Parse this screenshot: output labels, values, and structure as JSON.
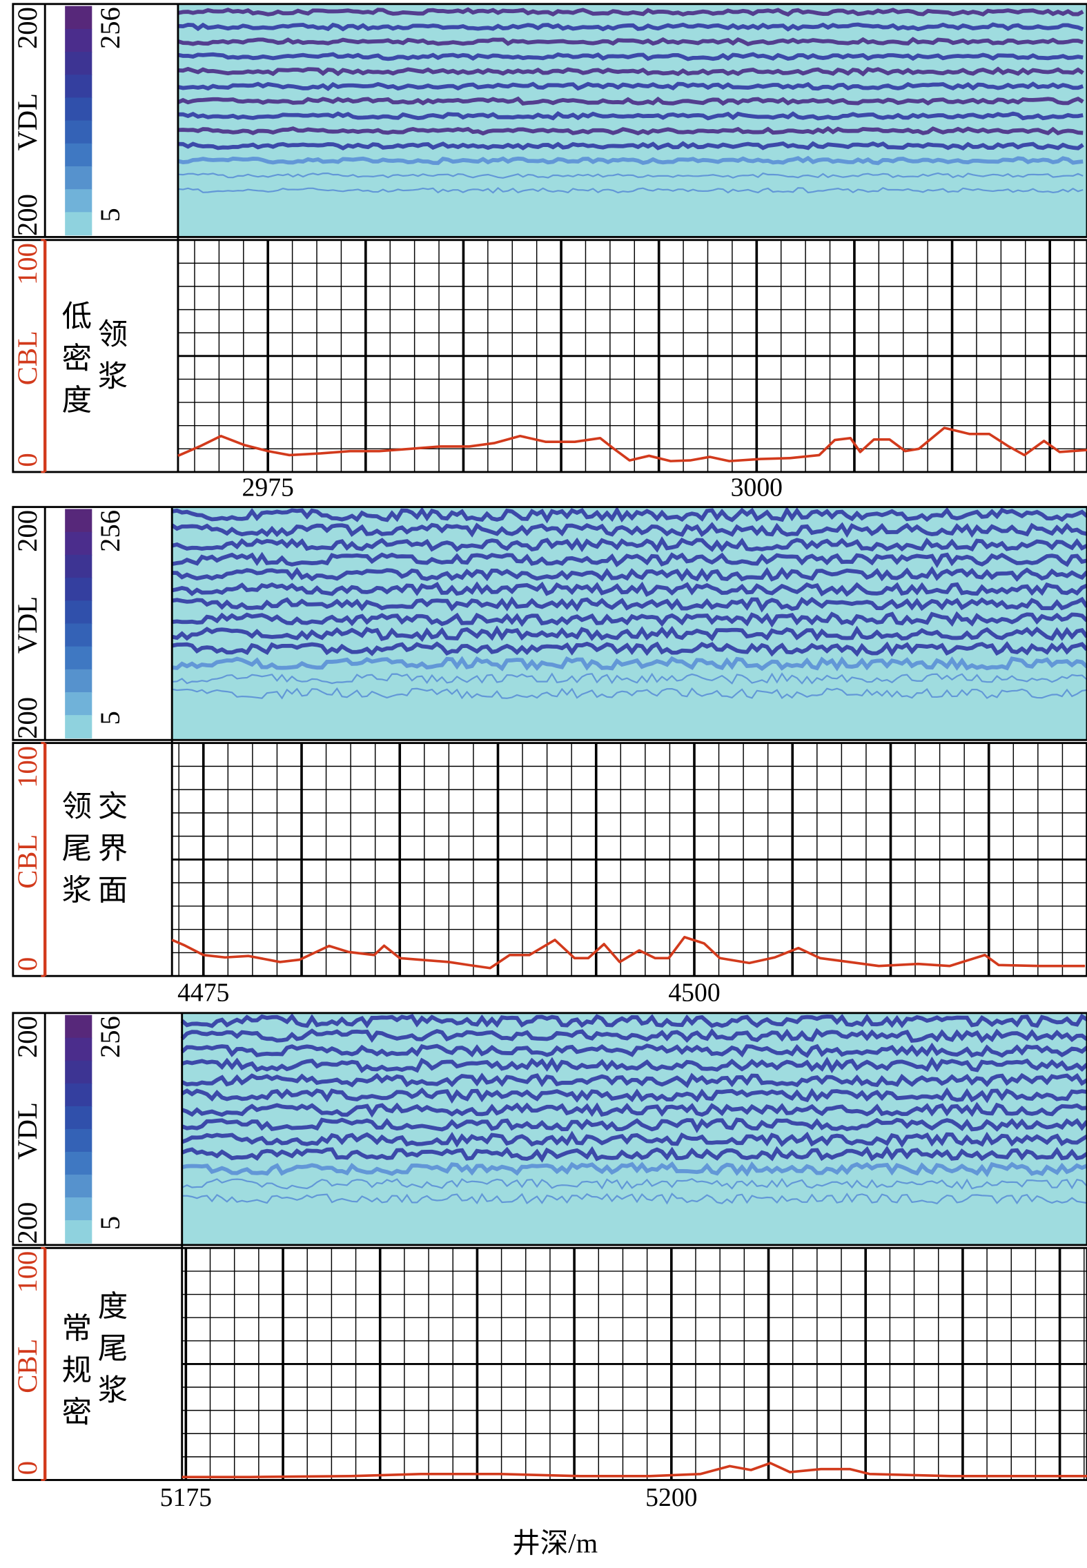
{
  "chart_data": [
    {
      "type": "line",
      "vdl": {
        "label": "VDL",
        "time_labels": [
          200,
          200
        ],
        "colorbar_ticks": [
          256,
          5
        ],
        "colors": [
          "#57287a",
          "#4b2d8c",
          "#3d3493",
          "#343f9f",
          "#3050ab",
          "#3462b6",
          "#3f78c2",
          "#5692cd",
          "#70b2d9",
          "#8fd2de"
        ]
      },
      "ylabel": "CBL",
      "ylim": [
        0,
        100
      ],
      "yticks": [
        0,
        100
      ],
      "annotation": [
        "低密度",
        "领浆"
      ],
      "xlim": [
        2970.4,
        3016.9
      ],
      "xticks": [
        2975,
        3000
      ],
      "grid": {
        "x_major": 5,
        "x_minor": 1.25,
        "y_major": 50,
        "y_minor": 10
      },
      "series": [
        {
          "color": "#d23a1c",
          "x": [
            2970.4,
            2971.5,
            2972.6,
            2973.8,
            2975,
            2976.1,
            2977.7,
            2979.2,
            2980.7,
            2982.3,
            2983.8,
            2985.3,
            2986.6,
            2987.9,
            2989.2,
            2990.7,
            2992.0,
            2992.7,
            2993.5,
            2994.5,
            2995.6,
            2996.6,
            2997.6,
            2998.6,
            3000.2,
            3001.7,
            3003.2,
            3004.0,
            3004.8,
            3005.3,
            3006.0,
            3006.8,
            3007.6,
            3008.3,
            3009.6,
            3010.9,
            3011.9,
            3012.9,
            3013.7,
            3014.7,
            3015.5,
            3016.9
          ],
          "values": [
            7,
            11,
            15.5,
            11.6,
            9,
            7.3,
            8,
            9,
            9,
            10,
            11,
            11,
            12.5,
            15.5,
            13,
            13,
            14.6,
            10,
            5,
            7,
            4.7,
            5,
            6.5,
            4.7,
            5.6,
            6,
            7.3,
            13.8,
            14.6,
            8.6,
            14,
            14,
            9,
            10,
            19,
            16.4,
            16.4,
            11,
            7.3,
            13.4,
            8.6,
            9.5
          ]
        }
      ]
    },
    {
      "type": "line",
      "vdl": {
        "label": "VDL",
        "time_labels": [
          200,
          200
        ],
        "colorbar_ticks": [
          256,
          5
        ],
        "colors": [
          "#57287a",
          "#4b2d8c",
          "#3d3493",
          "#343f9f",
          "#3050ab",
          "#3462b6",
          "#3f78c2",
          "#5692cd",
          "#70b2d9",
          "#8fd2de"
        ]
      },
      "ylabel": "CBL",
      "ylim": [
        0,
        100
      ],
      "yticks": [
        0,
        100
      ],
      "annotation": [
        "领尾浆",
        "交界面"
      ],
      "xlim": [
        4473.4,
        4520.0
      ],
      "xticks": [
        4475,
        4500
      ],
      "grid": {
        "x_major": 5,
        "x_minor": 1.25,
        "y_major": 50,
        "y_minor": 10
      },
      "series": [
        {
          "color": "#d23a1c",
          "x": [
            4473.4,
            4474.0,
            4475,
            4476.1,
            4477.3,
            4478.9,
            4479.9,
            4481.4,
            4482.4,
            4483.7,
            4484.2,
            4485.0,
            4486.0,
            4487.5,
            4488.5,
            4489.6,
            4490.6,
            4491.6,
            4492.9,
            4493.9,
            4494.6,
            4495.4,
            4496.2,
            4497.2,
            4498.0,
            4498.7,
            4499.5,
            4500.5,
            4501.3,
            4502.8,
            4504.1,
            4505.3,
            4506.4,
            4507.9,
            4509.4,
            4511.4,
            4513.0,
            4514.8,
            4515.5,
            4517.6,
            4519.9
          ],
          "values": [
            15.5,
            13.3,
            9,
            8,
            8.6,
            6,
            7,
            12.9,
            10.3,
            9,
            13,
            7.7,
            7,
            6,
            4.7,
            3.4,
            9,
            9,
            15.5,
            7.7,
            7.7,
            13.7,
            6,
            11,
            7.7,
            7.7,
            16.7,
            14,
            7.7,
            5.6,
            8,
            12,
            7.7,
            6,
            4.3,
            5.2,
            4.3,
            9,
            4.7,
            4.3,
            4.3
          ]
        }
      ]
    },
    {
      "type": "line",
      "vdl": {
        "label": "VDL",
        "time_labels": [
          200,
          200
        ],
        "colorbar_ticks": [
          256,
          5
        ],
        "colors": [
          "#57287a",
          "#4b2d8c",
          "#3d3493",
          "#343f9f",
          "#3050ab",
          "#3462b6",
          "#3f78c2",
          "#5692cd",
          "#70b2d9",
          "#8fd2de"
        ]
      },
      "ylabel": "CBL",
      "ylim": [
        0,
        100
      ],
      "yticks": [
        0,
        100
      ],
      "annotation": [
        "常规密",
        "度尾浆"
      ],
      "xlim": [
        5174.8,
        5221.4
      ],
      "xticks": [
        5175,
        5200
      ],
      "xlabel": "井深/m",
      "grid": {
        "x_major": 5,
        "x_minor": 1.25,
        "y_major": 50,
        "y_minor": 10
      },
      "series": [
        {
          "color": "#d23a1c",
          "x": [
            5174.8,
            5178.3,
            5183.5,
            5187.1,
            5191.2,
            5195.3,
            5198.9,
            5201.5,
            5203.0,
            5204.1,
            5205.1,
            5206.1,
            5207.7,
            5209.2,
            5210.2,
            5214.4,
            5221.4
          ],
          "values": [
            1.3,
            1.3,
            1.7,
            2.6,
            2.6,
            1.7,
            1.7,
            2.6,
            6,
            4.3,
            7.3,
            3.4,
            4.7,
            4.7,
            2.6,
            1.7,
            1.7
          ]
        }
      ]
    }
  ]
}
